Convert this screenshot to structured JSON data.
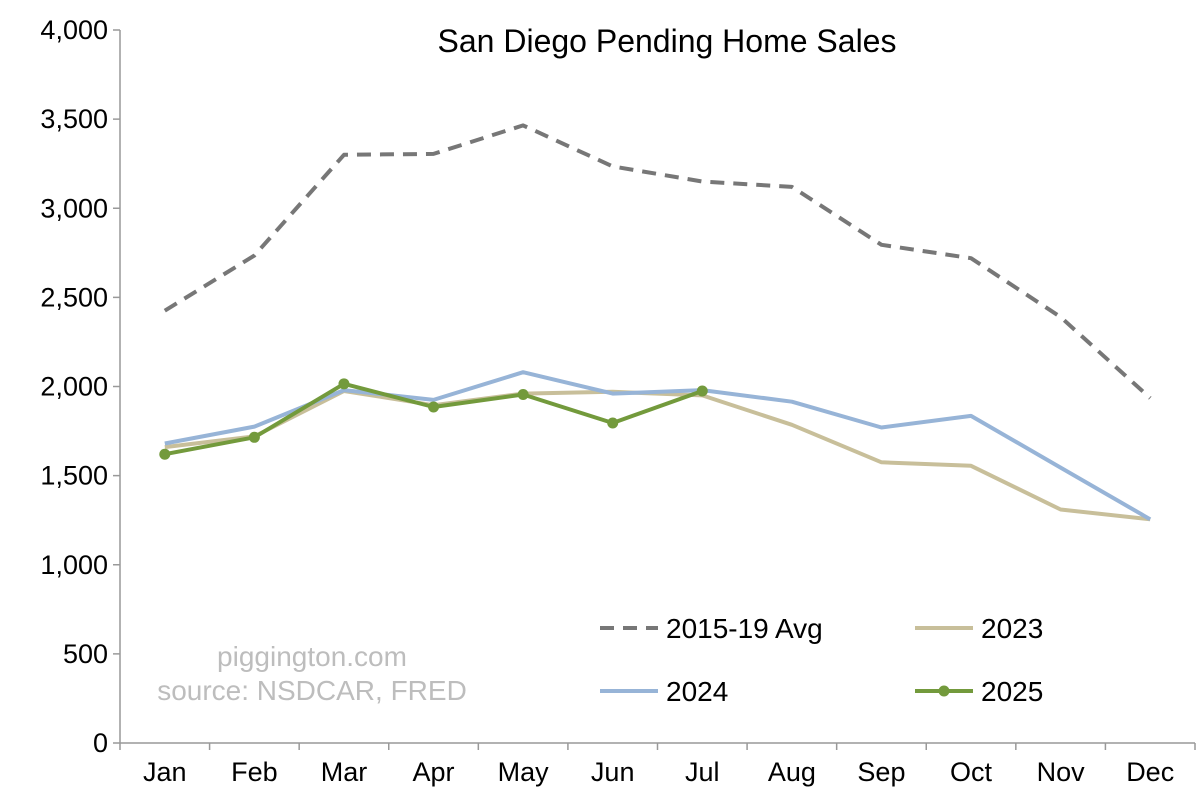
{
  "chart_data": {
    "type": "line",
    "title": "San Diego Pending Home Sales",
    "xlabel": "",
    "ylabel": "",
    "categories": [
      "Jan",
      "Feb",
      "Mar",
      "Apr",
      "May",
      "Jun",
      "Jul",
      "Aug",
      "Sep",
      "Oct",
      "Nov",
      "Dec"
    ],
    "ylim": [
      0,
      4000
    ],
    "yticks": [
      0,
      500,
      1000,
      1500,
      2000,
      2500,
      3000,
      3500,
      4000
    ],
    "ytick_labels": [
      "0",
      "500",
      "1,000",
      "1,500",
      "2,000",
      "2,500",
      "3,000",
      "3,500",
      "4,000"
    ],
    "grid": false,
    "legend_position": "bottom-right",
    "series": [
      {
        "name": "2015-19 Avg",
        "color": "#777777",
        "style": "dashed",
        "markers": false,
        "values": [
          2425,
          2735,
          3300,
          3305,
          3465,
          3235,
          3150,
          3120,
          2795,
          2720,
          2390,
          1935
        ]
      },
      {
        "name": "2023",
        "color": "#c8bf9a",
        "style": "solid",
        "markers": false,
        "values": [
          1660,
          1720,
          1975,
          1895,
          1960,
          1970,
          1950,
          1785,
          1575,
          1555,
          1310,
          1255
        ]
      },
      {
        "name": "2024",
        "color": "#97b4d7",
        "style": "solid",
        "markers": false,
        "values": [
          1680,
          1775,
          1980,
          1925,
          2080,
          1960,
          1980,
          1915,
          1770,
          1835,
          1545,
          1255
        ]
      },
      {
        "name": "2025",
        "color": "#739a3c",
        "style": "solid",
        "markers": true,
        "values": [
          1620,
          1715,
          2015,
          1885,
          1955,
          1795,
          1975,
          null,
          null,
          null,
          null,
          null
        ]
      }
    ]
  },
  "watermark": {
    "line1": "piggington.com",
    "line2": "source: NSDCAR, FRED"
  }
}
